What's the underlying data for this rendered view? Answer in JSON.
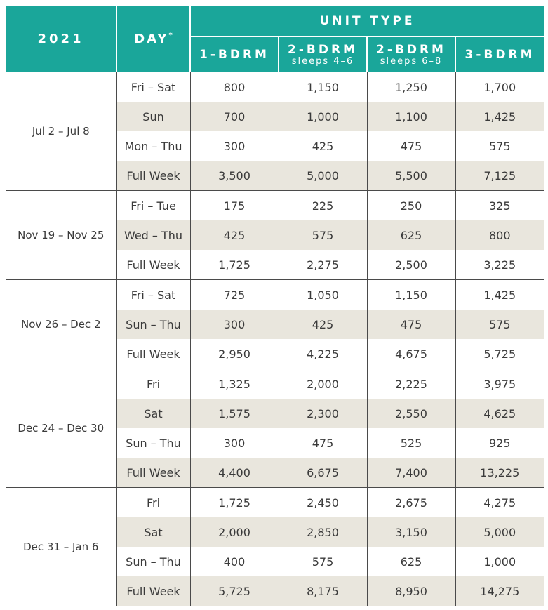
{
  "header": {
    "year": "2021",
    "day": "DAY",
    "day_mark": "*",
    "unit_type": "UNIT TYPE",
    "columns": [
      {
        "label": "1-BDRM",
        "sub": ""
      },
      {
        "label": "2-BDRM",
        "sub": "sleeps 4–6"
      },
      {
        "label": "2-BDRM",
        "sub": "sleeps 6–8"
      },
      {
        "label": "3-BDRM",
        "sub": ""
      }
    ]
  },
  "groups": [
    {
      "dates": "Jul 2 – Jul 8",
      "rows": [
        {
          "day": "Fri – Sat",
          "values": [
            "800",
            "1,150",
            "1,250",
            "1,700"
          ]
        },
        {
          "day": "Sun",
          "values": [
            "700",
            "1,000",
            "1,100",
            "1,425"
          ]
        },
        {
          "day": "Mon – Thu",
          "values": [
            "300",
            "425",
            "475",
            "575"
          ]
        },
        {
          "day": "Full Week",
          "values": [
            "3,500",
            "5,000",
            "5,500",
            "7,125"
          ]
        }
      ]
    },
    {
      "dates": "Nov 19 – Nov 25",
      "rows": [
        {
          "day": "Fri – Tue",
          "values": [
            "175",
            "225",
            "250",
            "325"
          ]
        },
        {
          "day": "Wed – Thu",
          "values": [
            "425",
            "575",
            "625",
            "800"
          ]
        },
        {
          "day": "Full Week",
          "values": [
            "1,725",
            "2,275",
            "2,500",
            "3,225"
          ]
        }
      ]
    },
    {
      "dates": "Nov 26 – Dec 2",
      "rows": [
        {
          "day": "Fri – Sat",
          "values": [
            "725",
            "1,050",
            "1,150",
            "1,425"
          ]
        },
        {
          "day": "Sun – Thu",
          "values": [
            "300",
            "425",
            "475",
            "575"
          ]
        },
        {
          "day": "Full Week",
          "values": [
            "2,950",
            "4,225",
            "4,675",
            "5,725"
          ]
        }
      ]
    },
    {
      "dates": "Dec 24 – Dec 30",
      "rows": [
        {
          "day": "Fri",
          "values": [
            "1,325",
            "2,000",
            "2,225",
            "3,975"
          ]
        },
        {
          "day": "Sat",
          "values": [
            "1,575",
            "2,300",
            "2,550",
            "4,625"
          ]
        },
        {
          "day": "Sun – Thu",
          "values": [
            "300",
            "475",
            "525",
            "925"
          ]
        },
        {
          "day": "Full Week",
          "values": [
            "4,400",
            "6,675",
            "7,400",
            "13,225"
          ]
        }
      ]
    },
    {
      "dates": "Dec 31 – Jan 6",
      "rows": [
        {
          "day": "Fri",
          "values": [
            "1,725",
            "2,450",
            "2,675",
            "4,275"
          ]
        },
        {
          "day": "Sat",
          "values": [
            "2,000",
            "2,850",
            "3,150",
            "5,000"
          ]
        },
        {
          "day": "Sun – Thu",
          "values": [
            "400",
            "575",
            "625",
            "1,000"
          ]
        },
        {
          "day": "Full Week",
          "values": [
            "5,725",
            "8,175",
            "8,950",
            "14,275"
          ]
        }
      ]
    }
  ],
  "colors": {
    "header_bg": "#1aa69a",
    "header_text": "#ffffff",
    "alt_row_bg": "#e9e6dd",
    "text": "#3a3a3a"
  }
}
